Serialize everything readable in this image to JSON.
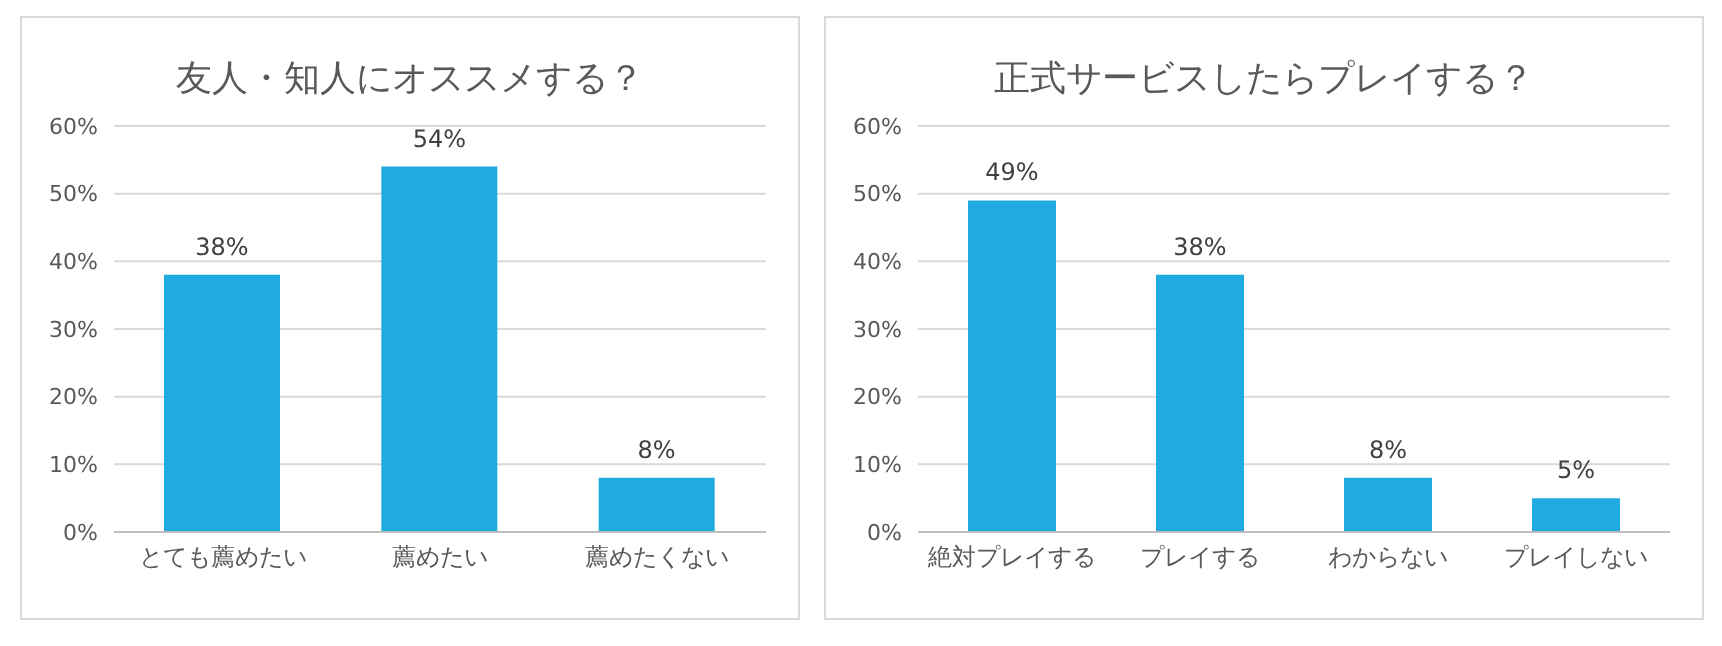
{
  "chart_data": [
    {
      "type": "bar",
      "title": "友人・知人にオススメする？",
      "categories": [
        "とても薦めたい",
        "薦めたい",
        "薦めたくない"
      ],
      "values": [
        38,
        54,
        8
      ],
      "value_labels": [
        "38%",
        "54%",
        "8%"
      ],
      "color": "#1fabe0",
      "ylim": [
        0,
        60
      ],
      "yticks": [
        {
          "value": 0,
          "label": "0%"
        },
        {
          "value": 10,
          "label": "10%"
        },
        {
          "value": 20,
          "label": "20%"
        },
        {
          "value": 30,
          "label": "30%"
        },
        {
          "value": 40,
          "label": "40%"
        },
        {
          "value": 50,
          "label": "50%"
        },
        {
          "value": 60,
          "label": "60%"
        }
      ],
      "grid": "y"
    },
    {
      "type": "bar",
      "title": "正式サービスしたらプレイする？",
      "categories": [
        "絶対プレイする",
        "プレイする",
        "わからない",
        "プレイしない"
      ],
      "values": [
        49,
        38,
        8,
        5
      ],
      "value_labels": [
        "49%",
        "38%",
        "8%",
        "5%"
      ],
      "color": "#1fabe0",
      "ylim": [
        0,
        60
      ],
      "yticks": [
        {
          "value": 0,
          "label": "0%"
        },
        {
          "value": 10,
          "label": "10%"
        },
        {
          "value": 20,
          "label": "20%"
        },
        {
          "value": 30,
          "label": "30%"
        },
        {
          "value": 40,
          "label": "40%"
        },
        {
          "value": 50,
          "label": "50%"
        },
        {
          "value": 60,
          "label": "60%"
        }
      ],
      "grid": "y"
    }
  ]
}
